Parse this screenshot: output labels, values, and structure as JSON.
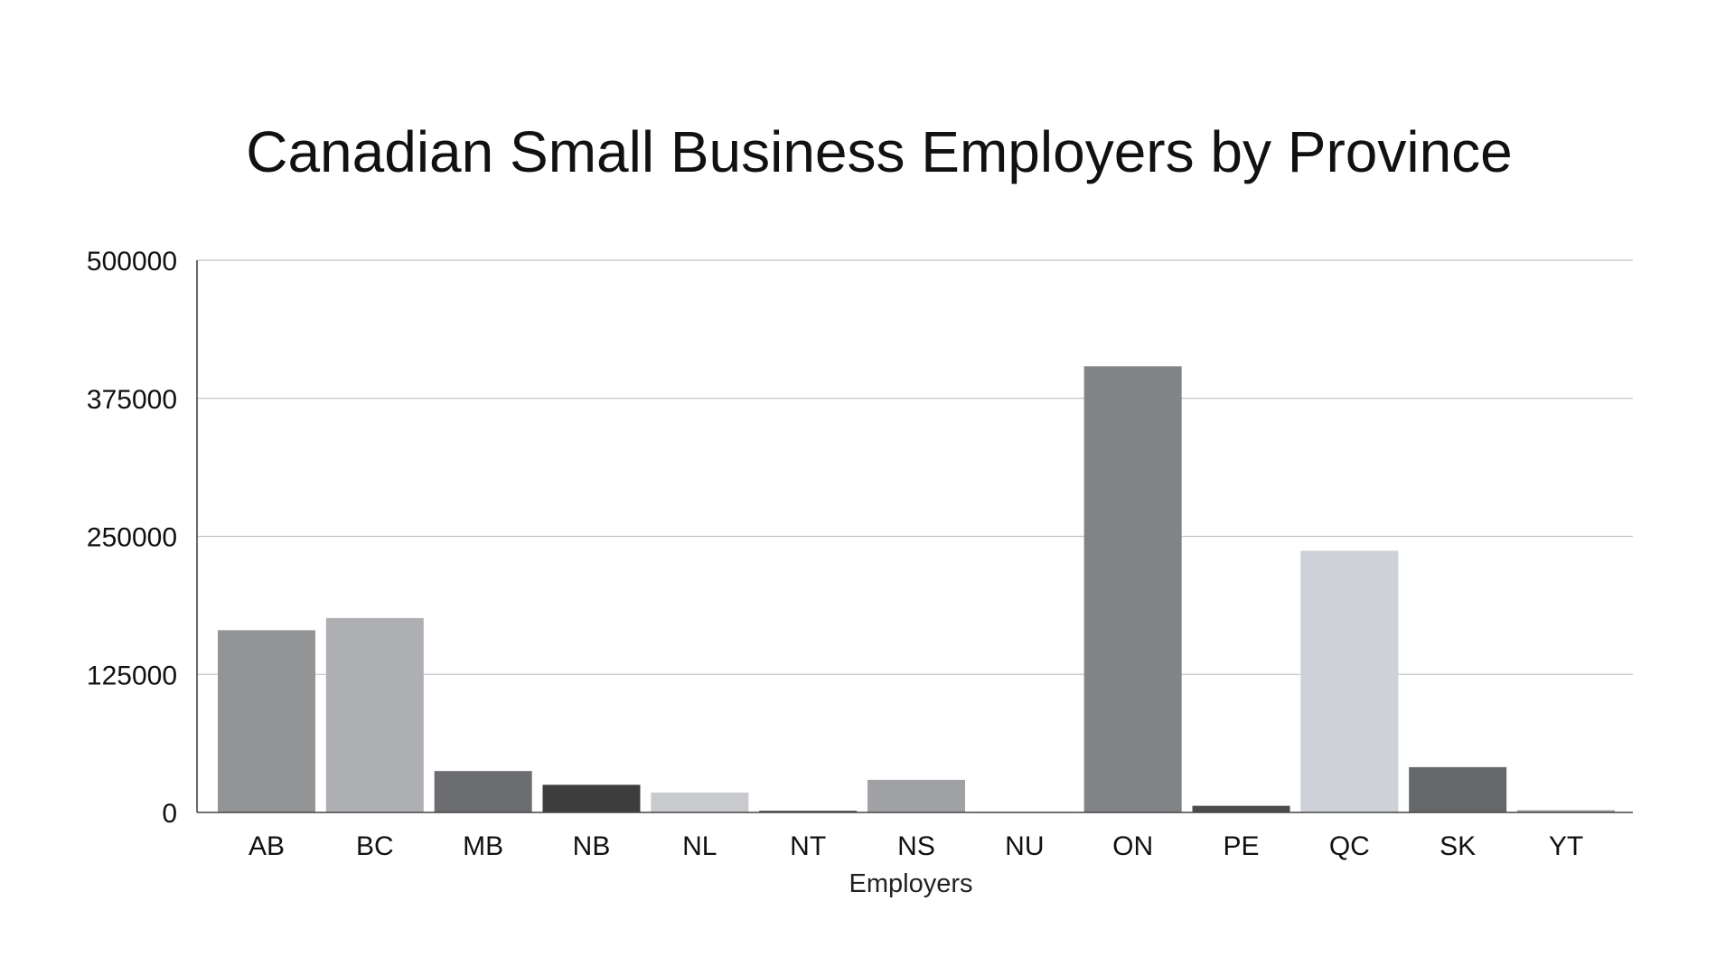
{
  "chart_data": {
    "type": "bar",
    "title": "Canadian Small Business Employers by Province",
    "xlabel": "Employers",
    "ylabel": "",
    "ylim": [
      0,
      500000
    ],
    "yticks": [
      "0",
      "125000",
      "250000",
      "375000",
      "500000"
    ],
    "grid": true,
    "categories": [
      "AB",
      "BC",
      "MB",
      "NB",
      "NL",
      "NT",
      "NS",
      "NU",
      "ON",
      "PE",
      "QC",
      "SK",
      "YT"
    ],
    "values": [
      165000,
      176000,
      37500,
      25000,
      18000,
      1500,
      29500,
      500,
      404000,
      6000,
      237000,
      41000,
      2000
    ],
    "colors": [
      "#929496",
      "#aeafb2",
      "#6c6d70",
      "#3d3d3d",
      "#c9cace",
      "#4a4a4a",
      "#a0a1a4",
      "#8c8d90",
      "#828386",
      "#4c4c4c",
      "#cfd1d8",
      "#666769",
      "#9d9ea1"
    ]
  }
}
